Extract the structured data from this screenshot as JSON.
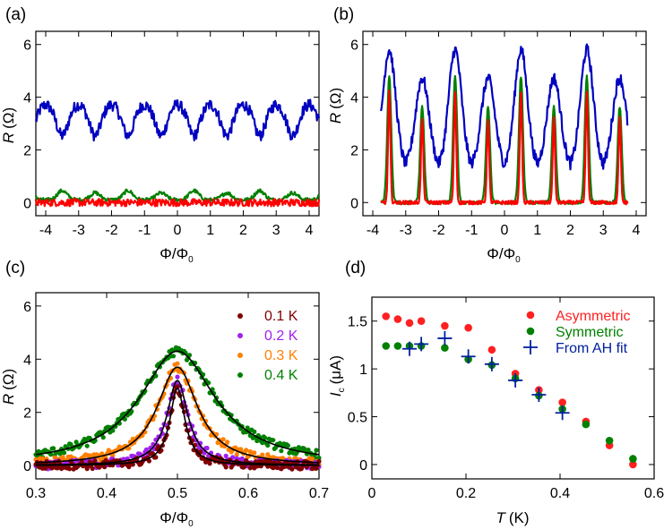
{
  "chart_data": [
    {
      "panel": "a",
      "label": "(a)",
      "type": "line",
      "xlabel": "Φ/Φ",
      "xlabel_sub": "0",
      "ylabel": "R",
      "ylabel_unit": "(Ω)",
      "xlim": [
        -4.3,
        4.3
      ],
      "ylim": [
        -0.5,
        6.5
      ],
      "xticks": [
        -4,
        -3,
        -2,
        -1,
        0,
        1,
        2,
        3,
        4
      ],
      "xtick_labels": [
        "-4",
        "-3",
        "-2",
        "-1",
        "0",
        "1",
        "2",
        "3",
        "4"
      ],
      "yticks": [
        0,
        2,
        4,
        6
      ],
      "ytick_labels": [
        "0",
        "2",
        "4",
        "6"
      ],
      "series": [
        {
          "name": "blue",
          "color": "#0000c0",
          "model": "dips",
          "base": 3.2,
          "amp": 1.2,
          "dip_centers": "half-integer",
          "width": 0.18,
          "x_range": [
            -4.3,
            4.3
          ]
        },
        {
          "name": "green",
          "color": "#008000",
          "model": "peaks",
          "base": 0.1,
          "amp": 0.35,
          "peak_centers": "half-integer",
          "width": 0.15,
          "x_range": [
            -4.3,
            4.3
          ]
        },
        {
          "name": "red",
          "color": "#ff0000",
          "model": "noise",
          "base": 0.0,
          "amp": 0.0,
          "x_range": [
            -4.3,
            4.3
          ]
        }
      ]
    },
    {
      "panel": "b",
      "label": "(b)",
      "type": "line",
      "xlabel": "Φ/Φ",
      "xlabel_sub": "0",
      "ylabel": "R",
      "ylabel_unit": "(Ω)",
      "xlim": [
        -4.3,
        4.3
      ],
      "ylim": [
        -0.5,
        6.5
      ],
      "xticks": [
        -4,
        -3,
        -2,
        -1,
        0,
        1,
        2,
        3,
        4
      ],
      "xtick_labels": [
        "-4",
        "-3",
        "-2",
        "-1",
        "0",
        "1",
        "2",
        "3",
        "4"
      ],
      "yticks": [
        0,
        2,
        4,
        6
      ],
      "ytick_labels": [
        "0",
        "2",
        "4",
        "6"
      ],
      "series": [
        {
          "name": "blue",
          "color": "#0000c0",
          "model": "peaks",
          "base": 1.3,
          "amp": 4.5,
          "peak_centers": "half-integer",
          "width": 0.2,
          "x_range": [
            -3.75,
            3.75
          ]
        },
        {
          "name": "green",
          "color": "#008000",
          "model": "peaks",
          "base": 0.0,
          "amp": 4.8,
          "peak_centers": "half-integer",
          "width": 0.06,
          "x_range": [
            -3.75,
            3.75
          ]
        },
        {
          "name": "red",
          "color": "#ff0000",
          "model": "peaks",
          "base": 0.0,
          "amp": 4.2,
          "peak_centers": "half-integer",
          "width": 0.035,
          "x_range": [
            -3.75,
            3.75
          ]
        }
      ]
    },
    {
      "panel": "c",
      "label": "(c)",
      "type": "scatter",
      "xlabel": "Φ/Φ",
      "xlabel_sub": "0",
      "ylabel": "R",
      "ylabel_unit": "(Ω)",
      "xlim": [
        0.3,
        0.7
      ],
      "ylim": [
        -0.5,
        6.5
      ],
      "xticks": [
        0.3,
        0.4,
        0.5,
        0.6,
        0.7
      ],
      "xtick_labels": [
        "0.3",
        "0.4",
        "0.5",
        "0.6",
        "0.7"
      ],
      "yticks": [
        0,
        2,
        4,
        6
      ],
      "ytick_labels": [
        "0",
        "2",
        "4",
        "6"
      ],
      "legend_position": "top-right",
      "series": [
        {
          "name": "0.1 K",
          "color": "#800000",
          "peak_x": 0.5,
          "peak_R": 2.9,
          "width": 0.013
        },
        {
          "name": "0.2 K",
          "color": "#a020f0",
          "peak_x": 0.5,
          "peak_R": 3.2,
          "width": 0.018
        },
        {
          "name": "0.3 K",
          "color": "#ff7f00",
          "peak_x": 0.5,
          "peak_R": 3.7,
          "width": 0.035
        },
        {
          "name": "0.4 K",
          "color": "#008000",
          "peak_x": 0.5,
          "peak_R": 4.3,
          "width": 0.065
        }
      ]
    },
    {
      "panel": "d",
      "label": "(d)",
      "type": "scatter",
      "xlabel": "T",
      "xlabel_unit": "(K)",
      "ylabel": "I",
      "ylabel_sub": "c",
      "ylabel_unit": "(μA)",
      "xlim": [
        0,
        0.6
      ],
      "ylim": [
        -0.15,
        1.75
      ],
      "xticks": [
        0,
        0.2,
        0.4,
        0.6
      ],
      "xtick_labels": [
        "0",
        "0.2",
        "0.4",
        "0.6"
      ],
      "yticks": [
        0,
        0.5,
        1,
        1.5
      ],
      "ytick_labels": [
        "0",
        "0.5",
        "1",
        "1.5"
      ],
      "legend_position": "top-right",
      "series": [
        {
          "name": "Asymmetric",
          "color": "#ff2020",
          "marker": "circle",
          "x": [
            0.03,
            0.055,
            0.08,
            0.105,
            0.155,
            0.205,
            0.255,
            0.305,
            0.355,
            0.405,
            0.455,
            0.505,
            0.555
          ],
          "y": [
            1.55,
            1.52,
            1.48,
            1.5,
            1.45,
            1.43,
            1.2,
            0.95,
            0.78,
            0.65,
            0.45,
            0.2,
            0.0
          ]
        },
        {
          "name": "Symmetric",
          "color": "#008000",
          "marker": "circle",
          "x": [
            0.03,
            0.055,
            0.08,
            0.105,
            0.155,
            0.205,
            0.255,
            0.305,
            0.355,
            0.405,
            0.455,
            0.505,
            0.555
          ],
          "y": [
            1.24,
            1.24,
            1.24,
            1.24,
            1.22,
            1.1,
            1.04,
            0.9,
            0.72,
            0.58,
            0.42,
            0.25,
            0.06
          ]
        },
        {
          "name": "From AH fit",
          "color": "#0020a0",
          "marker": "plus",
          "x": [
            0.08,
            0.105,
            0.155,
            0.205,
            0.255,
            0.305,
            0.355,
            0.405
          ],
          "y": [
            1.21,
            1.26,
            1.32,
            1.13,
            1.05,
            0.88,
            0.73,
            0.54
          ]
        }
      ]
    }
  ]
}
